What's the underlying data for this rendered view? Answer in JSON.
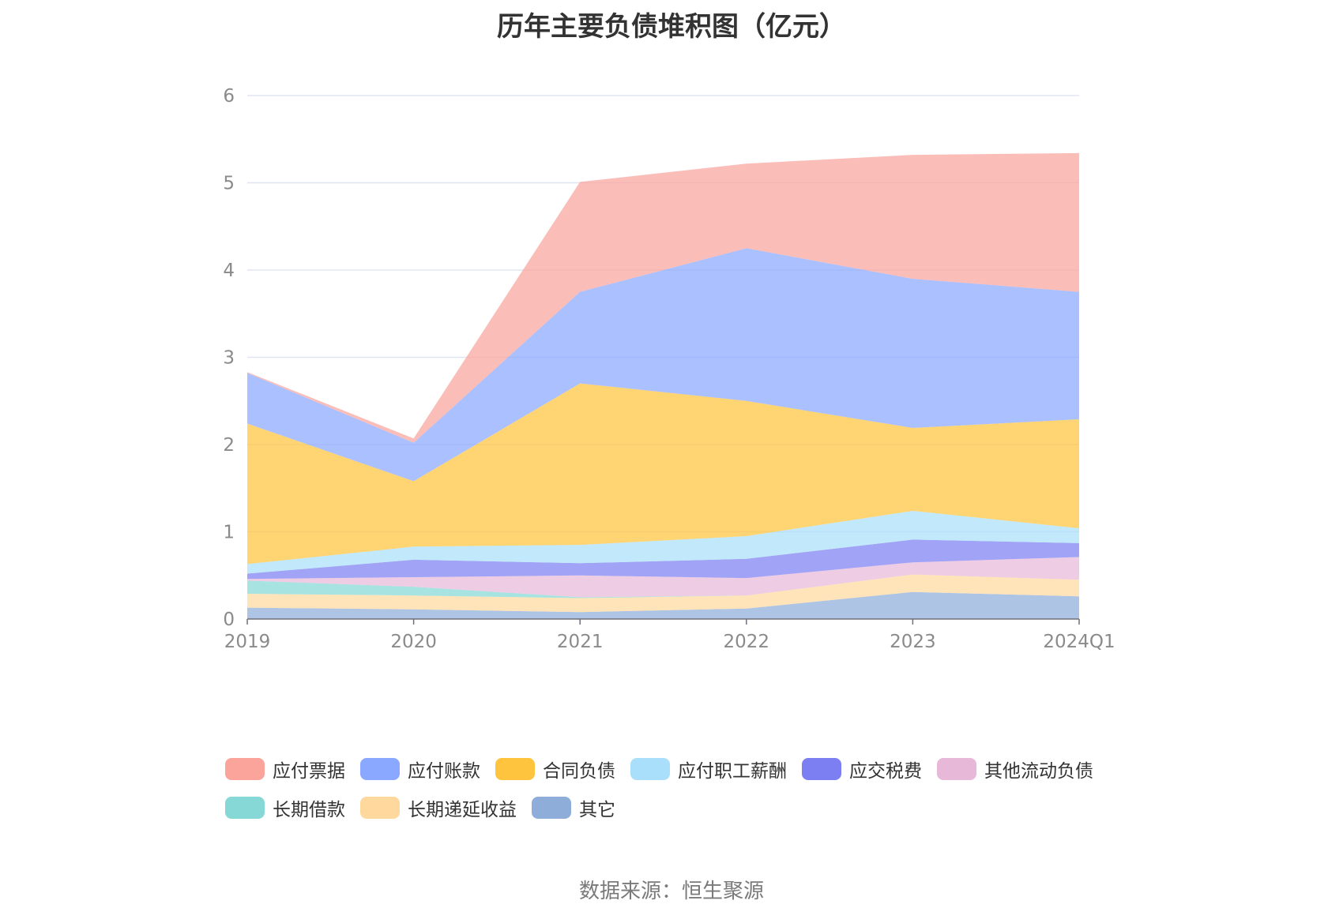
{
  "chart_data": {
    "type": "area",
    "stacked": true,
    "title": "历年主要负债堆积图（亿元）",
    "x": [
      "2019",
      "2020",
      "2021",
      "2022",
      "2023",
      "2024Q1"
    ],
    "ylim": [
      0,
      6
    ],
    "yticks": [
      "0",
      "1",
      "2",
      "3",
      "4",
      "5",
      "6"
    ],
    "grid": true,
    "legend_position": "bottom",
    "series": [
      {
        "name": "其它",
        "color": "#8fadd9",
        "values": [
          0.13,
          0.11,
          0.08,
          0.12,
          0.31,
          0.26
        ]
      },
      {
        "name": "长期递延收益",
        "color": "#ffd89e",
        "values": [
          0.16,
          0.16,
          0.16,
          0.15,
          0.2,
          0.19
        ]
      },
      {
        "name": "长期借款",
        "color": "#85d8d6",
        "values": [
          0.15,
          0.1,
          0.01,
          0.0,
          0.0,
          0.0
        ]
      },
      {
        "name": "其他流动负债",
        "color": "#e8b8d9",
        "values": [
          0.02,
          0.11,
          0.25,
          0.2,
          0.14,
          0.26
        ]
      },
      {
        "name": "应交税费",
        "color": "#7b7ff2",
        "values": [
          0.06,
          0.2,
          0.14,
          0.22,
          0.26,
          0.16
        ]
      },
      {
        "name": "应付职工薪酬",
        "color": "#a9dffa",
        "values": [
          0.11,
          0.15,
          0.21,
          0.26,
          0.33,
          0.17
        ]
      },
      {
        "name": "合同负债",
        "color": "#ffc43d",
        "values": [
          1.61,
          0.75,
          1.85,
          1.55,
          0.95,
          1.25
        ]
      },
      {
        "name": "应付账款",
        "color": "#8aa8ff",
        "values": [
          0.58,
          0.44,
          1.05,
          1.75,
          1.71,
          1.46
        ]
      },
      {
        "name": "应付票据",
        "color": "#faa49c",
        "values": [
          0.01,
          0.05,
          1.26,
          0.97,
          1.42,
          1.59
        ]
      }
    ],
    "source": "数据来源：恒生聚源"
  }
}
